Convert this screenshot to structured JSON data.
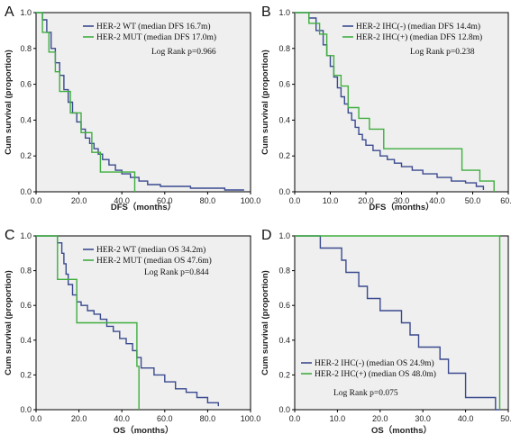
{
  "colors": {
    "wt": "#3a4a8f",
    "mut": "#3fae3f",
    "plot_bg": "#efefef"
  },
  "chart_data": [
    {
      "type": "line",
      "panel": "A",
      "xlabel": "DFS（months）",
      "ylabel": "Cum survival (proportion)",
      "xlim": [
        0,
        100
      ],
      "ylim": [
        0,
        1
      ],
      "xticks": [
        "0.0",
        "20.0",
        "40.0",
        "60.0",
        "80.0",
        "100.0"
      ],
      "yticks": [
        "0.0",
        "0.2",
        "0.4",
        "0.6",
        "0.8",
        "1.0"
      ],
      "legend_placement": "top-right",
      "annotation": "Log Rank p=0.966",
      "series": [
        {
          "name": "HER-2 WT (median DFS 16.7m)",
          "color": "#3a4a8f",
          "x": [
            0,
            3,
            5,
            7,
            9,
            11,
            13,
            15,
            17,
            19,
            21,
            23,
            25,
            27,
            29,
            31,
            34,
            37,
            40,
            44,
            48,
            52,
            58,
            65,
            72,
            80,
            88,
            97
          ],
          "y": [
            1.0,
            0.96,
            0.89,
            0.8,
            0.72,
            0.65,
            0.57,
            0.5,
            0.44,
            0.39,
            0.35,
            0.3,
            0.27,
            0.24,
            0.21,
            0.18,
            0.15,
            0.12,
            0.1,
            0.08,
            0.06,
            0.04,
            0.03,
            0.03,
            0.02,
            0.02,
            0.01,
            0.01
          ]
        },
        {
          "name": "HER-2 MUT (median DFS 17.0m)",
          "color": "#3fae3f",
          "x": [
            0,
            3,
            6,
            9,
            11,
            16,
            21,
            26,
            30,
            46
          ],
          "y": [
            1.0,
            0.89,
            0.78,
            0.67,
            0.56,
            0.44,
            0.33,
            0.22,
            0.11,
            0.0
          ]
        }
      ]
    },
    {
      "type": "line",
      "panel": "B",
      "xlabel": "DFS（months）",
      "ylabel": "Cum survival (proportion)",
      "xlim": [
        0,
        60
      ],
      "ylim": [
        0,
        1
      ],
      "xticks": [
        "0.0",
        "10.0",
        "20.0",
        "30.0",
        "40.0",
        "50.0",
        "60.0"
      ],
      "yticks": [
        "0.0",
        "0.2",
        "0.4",
        "0.6",
        "0.8",
        "1.0"
      ],
      "legend_placement": "top-right",
      "annotation": "Log Rank p=0.238",
      "series": [
        {
          "name": "HER-2 IHC(-) (median DFS 14.4m)",
          "color": "#3a4a8f",
          "x": [
            0,
            4,
            6,
            8,
            9,
            10,
            11,
            12,
            13,
            14,
            15,
            16,
            17,
            18,
            19,
            20,
            22,
            24,
            26,
            28,
            30,
            33,
            36,
            40,
            44,
            48,
            51,
            53
          ],
          "y": [
            1.0,
            0.97,
            0.9,
            0.82,
            0.76,
            0.7,
            0.64,
            0.58,
            0.53,
            0.49,
            0.44,
            0.4,
            0.36,
            0.32,
            0.29,
            0.26,
            0.23,
            0.2,
            0.18,
            0.16,
            0.14,
            0.12,
            0.1,
            0.08,
            0.06,
            0.05,
            0.03,
            0.01
          ]
        },
        {
          "name": "HER-2 IHC(+) (median DFS 12.8m)",
          "color": "#3fae3f",
          "x": [
            0,
            4,
            7,
            9,
            11,
            13,
            15,
            18,
            21,
            25,
            47,
            52,
            56
          ],
          "y": [
            1.0,
            0.94,
            0.88,
            0.76,
            0.65,
            0.59,
            0.47,
            0.41,
            0.35,
            0.24,
            0.12,
            0.06,
            0.0
          ]
        }
      ]
    },
    {
      "type": "line",
      "panel": "C",
      "xlabel": "OS（months）",
      "ylabel": "Cum survival (proportion)",
      "xlim": [
        0,
        100
      ],
      "ylim": [
        0,
        1
      ],
      "xticks": [
        "0.0",
        "20.0",
        "40.0",
        "60.0",
        "80.0",
        "100.0"
      ],
      "yticks": [
        "0.0",
        "0.2",
        "0.4",
        "0.6",
        "0.8",
        "1.0"
      ],
      "legend_placement": "top-right",
      "annotation": "Log Rank p=0.844",
      "series": [
        {
          "name": "HER-2 WT (median OS 34.2m)",
          "color": "#3a4a8f",
          "x": [
            0,
            10,
            12,
            13,
            14,
            15,
            17,
            19,
            21,
            24,
            27,
            30,
            33,
            36,
            39,
            42,
            45,
            47,
            49,
            55,
            60,
            65,
            70,
            75,
            80,
            85
          ],
          "y": [
            1.0,
            0.96,
            0.9,
            0.84,
            0.78,
            0.72,
            0.66,
            0.62,
            0.6,
            0.57,
            0.55,
            0.52,
            0.48,
            0.45,
            0.41,
            0.38,
            0.34,
            0.3,
            0.24,
            0.2,
            0.16,
            0.12,
            0.1,
            0.07,
            0.04,
            0.02
          ]
        },
        {
          "name": "HER-2 MUT (median OS 47.6m)",
          "color": "#3fae3f",
          "x": [
            0,
            10,
            19,
            47,
            48
          ],
          "y": [
            1.0,
            0.75,
            0.5,
            0.25,
            0.0
          ]
        }
      ]
    },
    {
      "type": "line",
      "panel": "D",
      "xlabel": "OS（months）",
      "ylabel": "Cum survival (proportion)",
      "xlim": [
        0,
        50
      ],
      "ylim": [
        0,
        1
      ],
      "xticks": [
        "0.0",
        "10.0",
        "20.0",
        "30.0",
        "40.0",
        "50.0"
      ],
      "yticks": [
        "0.0",
        "0.2",
        "0.4",
        "0.6",
        "0.8",
        "1.0"
      ],
      "legend_placement": "bottom-left",
      "annotation": "Log Rank p=0.075",
      "series": [
        {
          "name": "HER-2 IHC(-) (median OS 24.9m)",
          "color": "#3a4a8f",
          "x": [
            0,
            6,
            11,
            12,
            15,
            17,
            20,
            25,
            27,
            29,
            34,
            36,
            40,
            47,
            48
          ],
          "y": [
            1.0,
            0.93,
            0.86,
            0.79,
            0.71,
            0.64,
            0.57,
            0.5,
            0.43,
            0.36,
            0.29,
            0.21,
            0.07,
            0.0,
            0.0
          ]
        },
        {
          "name": "HER-2 IHC(+) (median OS 48.0m)",
          "color": "#3fae3f",
          "x": [
            0,
            48
          ],
          "y": [
            1.0,
            0.0
          ]
        }
      ]
    }
  ]
}
